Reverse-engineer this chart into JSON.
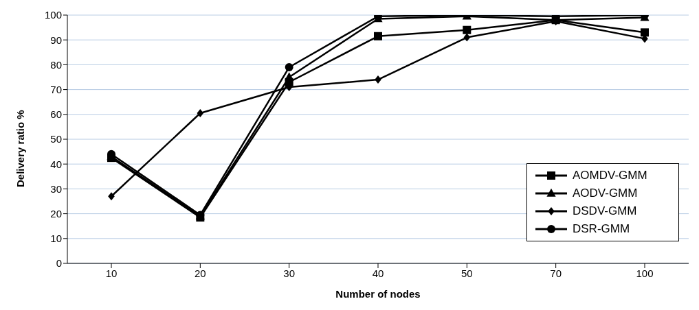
{
  "chart_data": {
    "type": "line",
    "xlabel": "Number of nodes",
    "ylabel": "Delivery ratio %",
    "categories": [
      "10",
      "20",
      "30",
      "40",
      "50",
      "70",
      "100"
    ],
    "series": [
      {
        "name": "AOMDV-GMM",
        "color": "#000000",
        "marker": "square",
        "values": [
          42.5,
          18.5,
          73,
          91.5,
          94,
          98,
          93
        ]
      },
      {
        "name": "AODV-GMM",
        "color": "#000000",
        "marker": "triangle",
        "values": [
          43,
          19,
          75,
          98.5,
          99.5,
          98,
          99
        ]
      },
      {
        "name": "DSDV-GMM",
        "color": "#000000",
        "marker": "diamond",
        "values": [
          27,
          60.5,
          71,
          74,
          91,
          97.5,
          90.5
        ]
      },
      {
        "name": "DSR-GMM",
        "color": "#000000",
        "marker": "circle",
        "values": [
          44,
          19.5,
          79,
          99.5,
          100,
          99.5,
          100
        ]
      }
    ],
    "ylim": [
      0,
      100
    ],
    "yticks": [
      0,
      10,
      20,
      30,
      40,
      50,
      60,
      70,
      80,
      90,
      100
    ],
    "grid": "y",
    "legend": "bottom right",
    "line_style": "solid"
  }
}
